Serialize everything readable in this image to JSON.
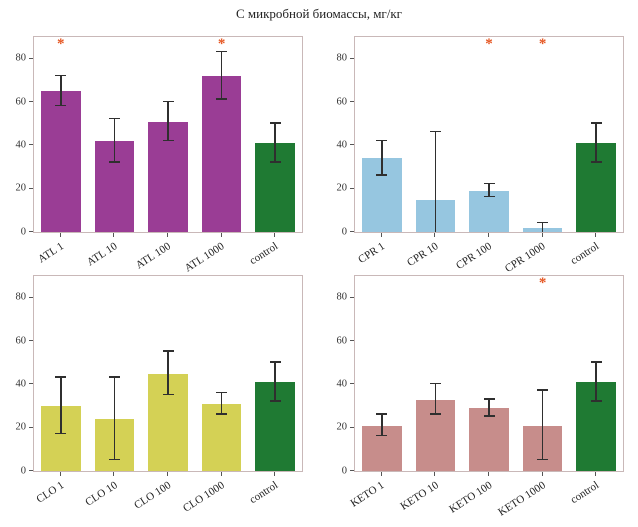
{
  "title": "С микробной биомассы, мг/кг",
  "style": {
    "asterisk_symbol": "*",
    "asterisk_color": "#e5541f",
    "error_bar_color": "#2f2f2f",
    "axis_border_color": "#c9b8b8",
    "tick_color": "#333333",
    "control_color": "#1f7a33"
  },
  "chart_data": [
    {
      "type": "bar",
      "name": "ATL",
      "categories": [
        "ATL 1",
        "ATL 10",
        "ATL 100",
        "ATL 1000",
        "control"
      ],
      "values": [
        65,
        42,
        51,
        72,
        41
      ],
      "errors": [
        7,
        10,
        9,
        11,
        9
      ],
      "significant": [
        true,
        false,
        false,
        true,
        false
      ],
      "bar_color": "#9a3d95",
      "control_color": "#1f7a33",
      "xlabel": "",
      "ylabel": "",
      "ylim": [
        0,
        90
      ],
      "yticks": [
        0,
        20,
        40,
        60,
        80
      ],
      "grid": false,
      "legend": "none"
    },
    {
      "type": "bar",
      "name": "CPR",
      "categories": [
        "CPR 1",
        "CPR 10",
        "CPR 100",
        "CPR 1000",
        "control"
      ],
      "values": [
        34,
        15,
        19,
        2,
        41
      ],
      "errors": [
        8,
        31,
        3,
        2,
        9
      ],
      "significant": [
        false,
        false,
        true,
        true,
        false
      ],
      "bar_color": "#96c6e0",
      "control_color": "#1f7a33",
      "xlabel": "",
      "ylabel": "",
      "ylim": [
        0,
        90
      ],
      "yticks": [
        0,
        20,
        40,
        60,
        80
      ],
      "grid": false,
      "legend": "none"
    },
    {
      "type": "bar",
      "name": "CLO",
      "categories": [
        "CLO 1",
        "CLO 10",
        "CLO 100",
        "CLO 1000",
        "control"
      ],
      "values": [
        30,
        24,
        45,
        31,
        41
      ],
      "errors": [
        13,
        19,
        10,
        5,
        9
      ],
      "significant": [
        false,
        false,
        false,
        false,
        false
      ],
      "bar_color": "#d4d155",
      "control_color": "#1f7a33",
      "xlabel": "",
      "ylabel": "",
      "ylim": [
        0,
        90
      ],
      "yticks": [
        0,
        20,
        40,
        60,
        80
      ],
      "grid": false,
      "legend": "none"
    },
    {
      "type": "bar",
      "name": "KETO",
      "categories": [
        "KETO 1",
        "KETO 10",
        "KETO 100",
        "KETO 1000",
        "control"
      ],
      "values": [
        21,
        33,
        29,
        21,
        41
      ],
      "errors": [
        5,
        7,
        4,
        16,
        9
      ],
      "significant": [
        false,
        false,
        false,
        true,
        false
      ],
      "bar_color": "#c78d8b",
      "control_color": "#1f7a33",
      "xlabel": "",
      "ylabel": "",
      "ylim": [
        0,
        90
      ],
      "yticks": [
        0,
        20,
        40,
        60,
        80
      ],
      "grid": false,
      "legend": "none"
    }
  ]
}
